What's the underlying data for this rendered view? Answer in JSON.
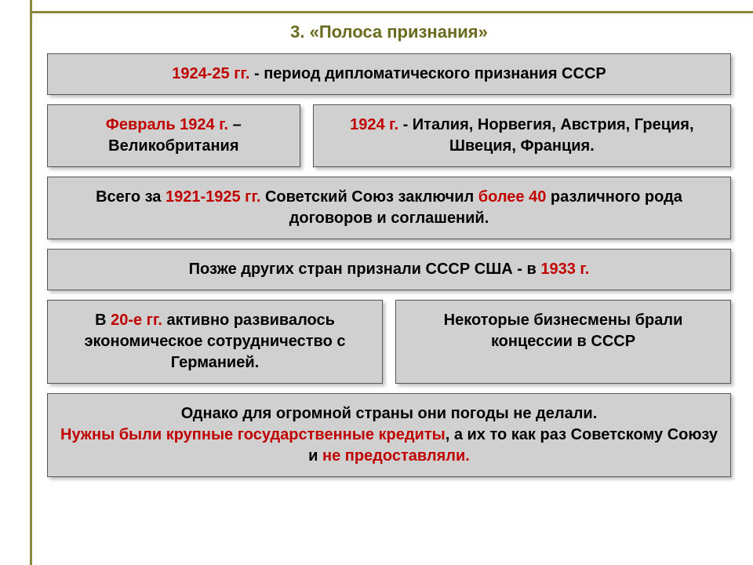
{
  "colors": {
    "frame": "#8a8a3a",
    "title_color": "#6b6b1f",
    "box_bg": "#d0d0d0",
    "box_border": "#555555",
    "text": "#000000",
    "highlight": "#c00000",
    "page_bg": "#ffffff"
  },
  "typography": {
    "font_family": "Arial, sans-serif",
    "title_fontsize": 22,
    "box_fontsize": 20,
    "font_weight": "bold"
  },
  "title": "3. «Полоса признания»",
  "box1": {
    "hl": "1924-25 гг.",
    "rest": " - период дипломатического признания СССР"
  },
  "row2": {
    "left": {
      "hl": "Февраль 1924 г.",
      "rest": " – Великобритания"
    },
    "right": {
      "hl": "1924 г.",
      "rest": " - Италия, Норвегия, Австрия, Греция, Швеция, Франция."
    }
  },
  "box3": {
    "p1a": "Всего за ",
    "p1b": "1921-1925 гг.",
    "p1c": " Советский Союз заключил ",
    "p1d": "более 40",
    "p1e": " различного рода договоров и соглашений."
  },
  "box4": {
    "a": "Позже других стран признали СССР США - в ",
    "b": "1933 г."
  },
  "row5": {
    "left": {
      "a": "В ",
      "b": "20-е гг.",
      "c": " активно развивалось экономическое сотрудничество с Германией."
    },
    "right": "Некоторые бизнесмены брали концессии в СССР"
  },
  "box6": {
    "l1": "Однако для огромной страны они погоды не делали.",
    "l2a": "Нужны были крупные государственные кредиты",
    "l2b": ", а их то как раз Советскому Союзу и ",
    "l2c": "не предоставляли."
  }
}
